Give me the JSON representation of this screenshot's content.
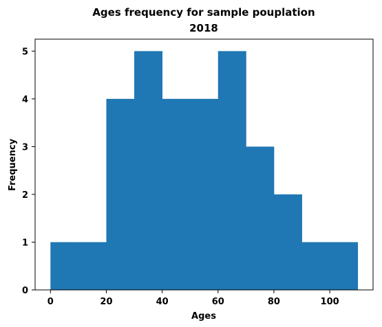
{
  "chart_data": {
    "type": "bar",
    "title_lines": [
      "Ages frequency for sample pouplation",
      "2018"
    ],
    "xlabel": "Ages",
    "ylabel": "Frequency",
    "bin_edges": [
      0,
      10,
      20,
      30,
      40,
      50,
      60,
      70,
      80,
      90,
      100,
      110
    ],
    "values": [
      1,
      1,
      4,
      5,
      4,
      4,
      5,
      3,
      2,
      1,
      1
    ],
    "xlim": [
      -5.5,
      115.5
    ],
    "ylim": [
      0,
      5.25
    ],
    "xticks": [
      0,
      20,
      40,
      60,
      80,
      100
    ],
    "yticks": [
      0,
      1,
      2,
      3,
      4,
      5
    ],
    "grid": false,
    "bar_color": "#1f77b4"
  }
}
